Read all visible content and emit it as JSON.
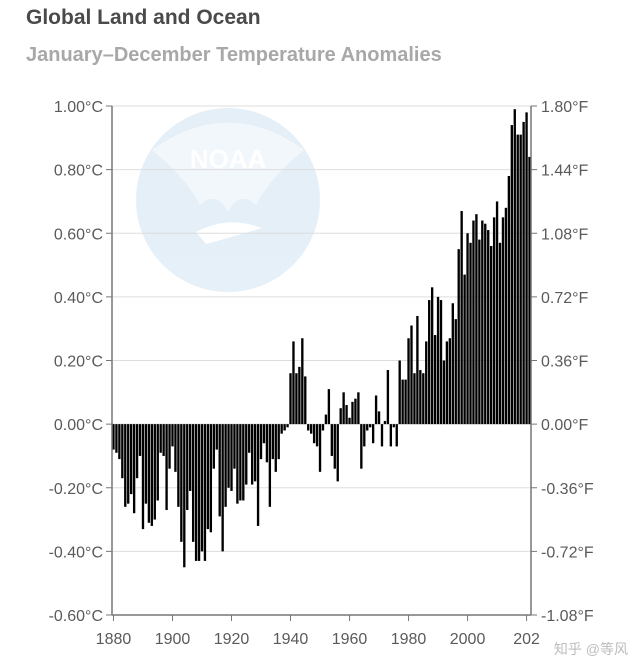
{
  "header": {
    "title": "Global Land and Ocean",
    "subtitle": "January–December Temperature Anomalies"
  },
  "logo": {
    "text": "NOAA"
  },
  "watermark": {
    "text": "知乎 @等风"
  },
  "colors": {
    "bar": "#000000",
    "grid": "#dddddd",
    "axis": "#777777",
    "logo": "#d8eaf5"
  },
  "chart_data": {
    "type": "bar",
    "title": "Global Land and Ocean",
    "subtitle": "January–December Temperature Anomalies",
    "xlabel": "",
    "ylabel": "",
    "xlim": [
      1880,
      2021
    ],
    "ylim": [
      -0.6,
      1.0
    ],
    "grid": true,
    "x_ticks": [
      "1880",
      "1900",
      "1920",
      "1940",
      "1960",
      "1980",
      "2000",
      "202"
    ],
    "y_ticks_left": [
      "1.00°C",
      "0.80°C",
      "0.60°C",
      "0.40°C",
      "0.20°C",
      "0.00°C",
      "-0.20°C",
      "-0.40°C",
      "-0.60°C"
    ],
    "y_ticks_right": [
      "1.80°F",
      "1.44°F",
      "1.08°F",
      "0.72°F",
      "0.36°F",
      "0.00°F",
      "-0.36°F",
      "-0.72°F",
      "-1.08°F"
    ],
    "x": [
      1880,
      1881,
      1882,
      1883,
      1884,
      1885,
      1886,
      1887,
      1888,
      1889,
      1890,
      1891,
      1892,
      1893,
      1894,
      1895,
      1896,
      1897,
      1898,
      1899,
      1900,
      1901,
      1902,
      1903,
      1904,
      1905,
      1906,
      1907,
      1908,
      1909,
      1910,
      1911,
      1912,
      1913,
      1914,
      1915,
      1916,
      1917,
      1918,
      1919,
      1920,
      1921,
      1922,
      1923,
      1924,
      1925,
      1926,
      1927,
      1928,
      1929,
      1930,
      1931,
      1932,
      1933,
      1934,
      1935,
      1936,
      1937,
      1938,
      1939,
      1940,
      1941,
      1942,
      1943,
      1944,
      1945,
      1946,
      1947,
      1948,
      1949,
      1950,
      1951,
      1952,
      1953,
      1954,
      1955,
      1956,
      1957,
      1958,
      1959,
      1960,
      1961,
      1962,
      1963,
      1964,
      1965,
      1966,
      1967,
      1968,
      1969,
      1970,
      1971,
      1972,
      1973,
      1974,
      1975,
      1976,
      1977,
      1978,
      1979,
      1980,
      1981,
      1982,
      1983,
      1984,
      1985,
      1986,
      1987,
      1988,
      1989,
      1990,
      1991,
      1992,
      1993,
      1994,
      1995,
      1996,
      1997,
      1998,
      1999,
      2000,
      2001,
      2002,
      2003,
      2004,
      2005,
      2006,
      2007,
      2008,
      2009,
      2010,
      2011,
      2012,
      2013,
      2014,
      2015,
      2016,
      2017,
      2018,
      2019,
      2020,
      2021
    ],
    "values": [
      -0.08,
      -0.09,
      -0.11,
      -0.17,
      -0.26,
      -0.25,
      -0.22,
      -0.28,
      -0.17,
      -0.1,
      -0.33,
      -0.25,
      -0.31,
      -0.32,
      -0.3,
      -0.24,
      -0.09,
      -0.1,
      -0.27,
      -0.14,
      -0.07,
      -0.15,
      -0.26,
      -0.37,
      -0.45,
      -0.27,
      -0.21,
      -0.37,
      -0.43,
      -0.43,
      -0.4,
      -0.43,
      -0.33,
      -0.34,
      -0.14,
      -0.08,
      -0.29,
      -0.4,
      -0.26,
      -0.2,
      -0.21,
      -0.14,
      -0.25,
      -0.24,
      -0.24,
      -0.19,
      -0.09,
      -0.19,
      -0.18,
      -0.32,
      -0.11,
      -0.06,
      -0.12,
      -0.26,
      -0.11,
      -0.15,
      -0.11,
      -0.03,
      -0.02,
      -0.01,
      0.16,
      0.26,
      0.16,
      0.18,
      0.27,
      0.15,
      -0.02,
      -0.03,
      -0.06,
      -0.07,
      -0.15,
      -0.02,
      0.03,
      0.11,
      -0.1,
      -0.14,
      -0.18,
      0.05,
      0.1,
      0.06,
      0.02,
      0.07,
      0.08,
      0.1,
      -0.14,
      -0.07,
      -0.02,
      -0.01,
      -0.06,
      0.09,
      0.04,
      -0.07,
      0.01,
      0.17,
      -0.07,
      -0.01,
      -0.07,
      0.2,
      0.14,
      0.14,
      0.27,
      0.31,
      0.16,
      0.34,
      0.17,
      0.16,
      0.26,
      0.39,
      0.43,
      0.28,
      0.4,
      0.39,
      0.2,
      0.26,
      0.27,
      0.38,
      0.33,
      0.55,
      0.67,
      0.47,
      0.6,
      0.57,
      0.64,
      0.66,
      0.58,
      0.64,
      0.63,
      0.61,
      0.56,
      0.65,
      0.7,
      0.57,
      0.65,
      0.68,
      0.78,
      0.94,
      0.99,
      0.91,
      0.91,
      0.95,
      0.98,
      0.84
    ]
  }
}
